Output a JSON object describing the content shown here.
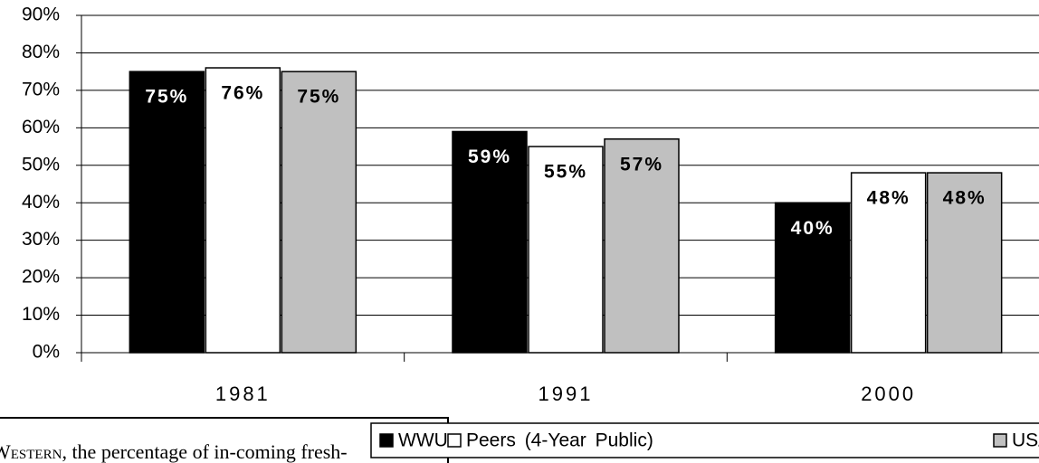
{
  "chart_data": {
    "type": "bar",
    "categories": [
      "1981",
      "1991",
      "2000"
    ],
    "series": [
      {
        "name": "WWU",
        "color": "#000000",
        "values": [
          75,
          59,
          40
        ],
        "value_labels": [
          "75%",
          "59%",
          "40%"
        ]
      },
      {
        "name": "Peers (4-Year Public)",
        "color": "#ffffff",
        "values": [
          76,
          55,
          48
        ],
        "value_labels": [
          "76%",
          "55%",
          "48%"
        ]
      },
      {
        "name": "USA",
        "color": "#c0c0c0",
        "values": [
          75,
          57,
          48
        ],
        "value_labels": [
          "75%",
          "57%",
          "48%"
        ]
      }
    ],
    "ylim": [
      0,
      90
    ],
    "yticks": [
      {
        "value": 0,
        "label": "0%"
      },
      {
        "value": 10,
        "label": "10%"
      },
      {
        "value": 20,
        "label": "20%"
      },
      {
        "value": 30,
        "label": "30%"
      },
      {
        "value": 40,
        "label": "40%"
      },
      {
        "value": 50,
        "label": "50%"
      },
      {
        "value": 60,
        "label": "60%"
      },
      {
        "value": 70,
        "label": "70%"
      },
      {
        "value": 80,
        "label": "80%"
      },
      {
        "value": 90,
        "label": "90%"
      }
    ],
    "grid": true,
    "legend": "bottom-right",
    "note_lead": "Western",
    "note": ", the percentage of in-coming fresh-"
  }
}
